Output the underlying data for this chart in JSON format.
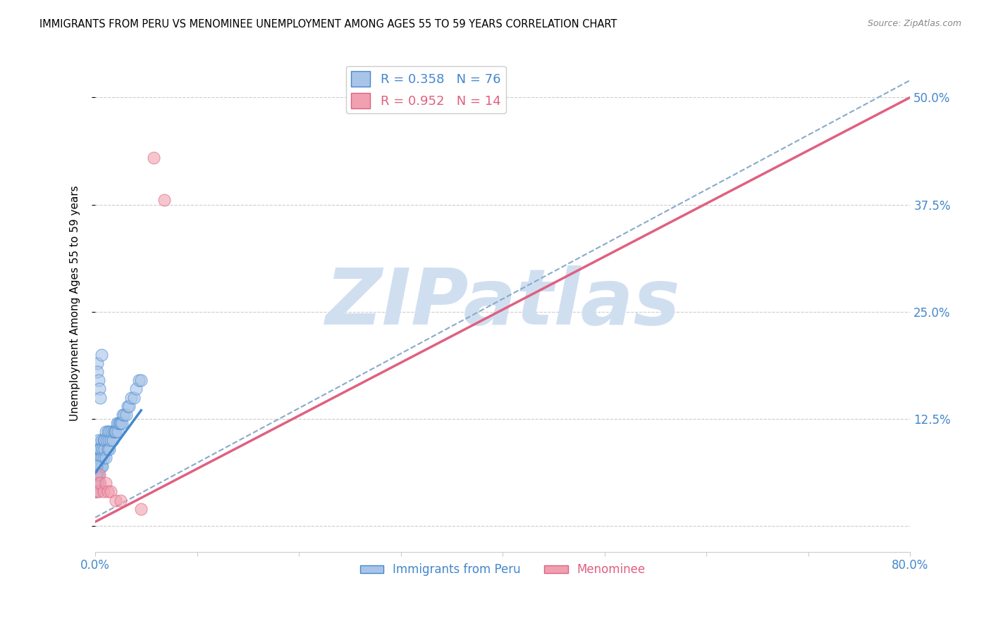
{
  "title": "IMMIGRANTS FROM PERU VS MENOMINEE UNEMPLOYMENT AMONG AGES 55 TO 59 YEARS CORRELATION CHART",
  "source": "Source: ZipAtlas.com",
  "ylabel": "Unemployment Among Ages 55 to 59 years",
  "xlim": [
    0.0,
    0.8
  ],
  "ylim": [
    -0.03,
    0.55
  ],
  "xticks": [
    0.0,
    0.1,
    0.2,
    0.3,
    0.4,
    0.5,
    0.6,
    0.7,
    0.8
  ],
  "xticklabels": [
    "0.0%",
    "",
    "",
    "",
    "",
    "",
    "",
    "",
    "80.0%"
  ],
  "yticks": [
    0.0,
    0.125,
    0.25,
    0.375,
    0.5
  ],
  "yticklabels": [
    "",
    "12.5%",
    "25.0%",
    "37.5%",
    "50.0%"
  ],
  "blue_R": 0.358,
  "blue_N": 76,
  "pink_R": 0.952,
  "pink_N": 14,
  "blue_color": "#a8c4e8",
  "pink_color": "#f0a0b0",
  "blue_line_color": "#4488cc",
  "pink_line_color": "#e06080",
  "dashed_line_color": "#88aacc",
  "watermark": "ZIPatlas",
  "watermark_color": "#d0dff0",
  "blue_scatter_x": [
    0.001,
    0.001,
    0.001,
    0.001,
    0.001,
    0.002,
    0.002,
    0.002,
    0.002,
    0.002,
    0.003,
    0.003,
    0.003,
    0.003,
    0.003,
    0.004,
    0.004,
    0.004,
    0.005,
    0.005,
    0.005,
    0.006,
    0.006,
    0.006,
    0.007,
    0.007,
    0.008,
    0.008,
    0.009,
    0.009,
    0.01,
    0.01,
    0.011,
    0.012,
    0.012,
    0.013,
    0.014,
    0.014,
    0.015,
    0.016,
    0.017,
    0.018,
    0.019,
    0.02,
    0.021,
    0.022,
    0.023,
    0.024,
    0.025,
    0.026,
    0.027,
    0.028,
    0.03,
    0.032,
    0.033,
    0.035,
    0.038,
    0.04,
    0.043,
    0.045,
    0.0,
    0.0,
    0.0,
    0.0,
    0.0,
    0.0,
    0.0,
    0.001,
    0.001,
    0.001,
    0.002,
    0.002,
    0.003,
    0.004,
    0.005,
    0.006
  ],
  "blue_scatter_y": [
    0.05,
    0.06,
    0.07,
    0.08,
    0.09,
    0.05,
    0.06,
    0.07,
    0.08,
    0.09,
    0.05,
    0.06,
    0.07,
    0.08,
    0.1,
    0.07,
    0.08,
    0.09,
    0.07,
    0.08,
    0.09,
    0.07,
    0.08,
    0.1,
    0.07,
    0.09,
    0.08,
    0.1,
    0.09,
    0.1,
    0.08,
    0.11,
    0.1,
    0.09,
    0.11,
    0.1,
    0.09,
    0.11,
    0.1,
    0.11,
    0.1,
    0.11,
    0.11,
    0.11,
    0.12,
    0.11,
    0.12,
    0.12,
    0.12,
    0.12,
    0.13,
    0.13,
    0.13,
    0.14,
    0.14,
    0.15,
    0.15,
    0.16,
    0.17,
    0.17,
    0.05,
    0.06,
    0.04,
    0.07,
    0.05,
    0.06,
    0.04,
    0.05,
    0.06,
    0.07,
    0.19,
    0.18,
    0.17,
    0.16,
    0.15,
    0.2
  ],
  "pink_scatter_x": [
    0.001,
    0.002,
    0.003,
    0.004,
    0.005,
    0.008,
    0.01,
    0.012,
    0.015,
    0.02,
    0.025,
    0.045,
    0.057,
    0.068
  ],
  "pink_scatter_y": [
    0.04,
    0.05,
    0.04,
    0.06,
    0.05,
    0.04,
    0.05,
    0.04,
    0.04,
    0.03,
    0.03,
    0.02,
    0.43,
    0.38
  ],
  "blue_line_x": [
    0.0,
    0.045
  ],
  "blue_line_y": [
    0.062,
    0.135
  ],
  "pink_line_x": [
    0.0,
    0.8
  ],
  "pink_line_y": [
    0.005,
    0.5
  ],
  "dashed_line_x": [
    0.0,
    0.8
  ],
  "dashed_line_y": [
    0.01,
    0.52
  ]
}
